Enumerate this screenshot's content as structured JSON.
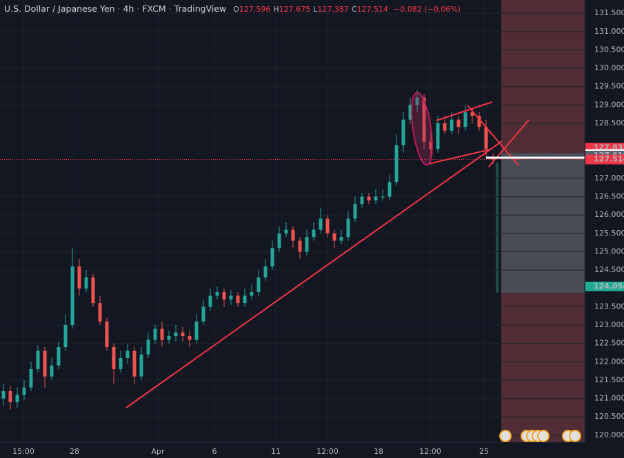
{
  "chart_data": {
    "type": "candlestick",
    "symbol": "U.S. Dollar / Japanese Yen",
    "interval": "4h",
    "exchange": "FXCM",
    "platform": "TradingView",
    "ohlc_header": [
      {
        "key": "O",
        "text": "127.596"
      },
      {
        "key": "H",
        "text": "127.675"
      },
      {
        "key": "L",
        "text": "127.387"
      },
      {
        "key": "C",
        "text": "127.514"
      }
    ],
    "change": "−0.082 (−0.06%)",
    "up_color": "#26a69a",
    "down_color": "#ef5350",
    "open": [
      121.0,
      121.2,
      120.9,
      121.1,
      121.3,
      121.8,
      122.3,
      121.6,
      121.9,
      122.4,
      123.0,
      124.6,
      124.0,
      124.3,
      123.6,
      123.1,
      122.4,
      121.8,
      122.1,
      122.3,
      121.6,
      122.2,
      122.6,
      122.9,
      122.6,
      122.7,
      122.8,
      122.7,
      122.6,
      123.1,
      123.5,
      123.8,
      123.9,
      123.7,
      123.8,
      123.6,
      123.8,
      123.9,
      124.3,
      124.6,
      125.1,
      125.5,
      125.6,
      125.3,
      125.0,
      125.4,
      125.6,
      125.9,
      125.5,
      125.3,
      125.4,
      125.9,
      126.3,
      126.5,
      126.4,
      126.5,
      126.5,
      126.9,
      127.9,
      128.6,
      129.0,
      129.2,
      128.0,
      127.8,
      128.5,
      128.3,
      128.6,
      128.4,
      128.8,
      128.7,
      128.4,
      127.596
    ],
    "high": [
      121.4,
      121.35,
      121.3,
      121.5,
      122.0,
      122.45,
      122.4,
      122.1,
      122.55,
      123.3,
      125.1,
      124.8,
      124.5,
      124.4,
      123.8,
      123.2,
      122.5,
      122.3,
      122.5,
      122.4,
      122.4,
      122.8,
      123.0,
      123.1,
      122.85,
      123.0,
      122.95,
      122.85,
      123.3,
      123.7,
      124.0,
      124.05,
      124.0,
      123.95,
      123.9,
      124.0,
      124.1,
      124.5,
      124.8,
      125.3,
      125.7,
      125.8,
      125.7,
      125.4,
      125.6,
      125.8,
      126.2,
      126.0,
      125.6,
      125.6,
      126.1,
      126.5,
      126.6,
      126.6,
      126.7,
      126.7,
      127.1,
      128.2,
      128.8,
      129.2,
      129.4,
      129.3,
      128.3,
      128.7,
      128.7,
      128.8,
      128.7,
      129.0,
      128.9,
      128.8,
      128.6,
      127.675
    ],
    "low": [
      120.8,
      120.7,
      120.75,
      120.95,
      121.2,
      121.7,
      121.3,
      121.5,
      121.8,
      122.3,
      122.9,
      123.8,
      123.9,
      123.5,
      123.0,
      122.3,
      121.4,
      121.7,
      121.95,
      121.4,
      121.5,
      122.1,
      122.5,
      122.4,
      122.5,
      122.55,
      122.55,
      122.4,
      122.5,
      123.0,
      123.4,
      123.7,
      123.5,
      123.55,
      123.5,
      123.5,
      123.7,
      123.8,
      124.2,
      124.5,
      125.0,
      125.4,
      125.1,
      124.8,
      124.9,
      125.3,
      125.5,
      125.4,
      125.1,
      125.2,
      125.3,
      125.8,
      126.2,
      126.3,
      126.3,
      126.4,
      126.4,
      126.8,
      127.7,
      128.5,
      128.8,
      127.8,
      127.5,
      127.7,
      128.2,
      128.2,
      128.2,
      128.3,
      128.5,
      128.3,
      127.6,
      127.387
    ],
    "close": [
      121.2,
      120.9,
      121.1,
      121.3,
      121.8,
      122.3,
      121.6,
      121.9,
      122.4,
      123.0,
      124.6,
      124.0,
      124.3,
      123.6,
      123.1,
      122.4,
      121.8,
      122.1,
      122.3,
      121.6,
      122.2,
      122.6,
      122.9,
      122.6,
      122.7,
      122.8,
      122.7,
      122.6,
      123.1,
      123.5,
      123.8,
      123.9,
      123.7,
      123.8,
      123.6,
      123.8,
      123.9,
      124.3,
      124.6,
      125.1,
      125.5,
      125.6,
      125.3,
      125.0,
      125.4,
      125.6,
      125.9,
      125.5,
      125.3,
      125.4,
      125.9,
      126.3,
      126.5,
      126.4,
      126.5,
      126.5,
      126.9,
      127.9,
      128.6,
      129.0,
      129.2,
      128.0,
      127.8,
      128.5,
      128.3,
      128.6,
      128.4,
      128.8,
      128.7,
      128.4,
      127.8,
      127.514
    ],
    "xlim": [
      -0.5,
      84.3
    ],
    "xticks": [
      {
        "value": 2.9,
        "label": "15:00"
      },
      {
        "value": 10.3,
        "label": "28"
      },
      {
        "value": 22.4,
        "label": "Apr"
      },
      {
        "value": 30.6,
        "label": "6"
      },
      {
        "value": 39.5,
        "label": "11"
      },
      {
        "value": 47,
        "label": "12:00"
      },
      {
        "value": 54.4,
        "label": "18"
      },
      {
        "value": 61.9,
        "label": "12:00"
      },
      {
        "value": 69.7,
        "label": "25"
      }
    ],
    "ylim": [
      119.81,
      131.86
    ],
    "yticks": [
      {
        "value": 120.0,
        "label": "120.000"
      },
      {
        "value": 120.5,
        "label": "120.500"
      },
      {
        "value": 121.0,
        "label": "121.000"
      },
      {
        "value": 121.5,
        "label": "121.500"
      },
      {
        "value": 122.0,
        "label": "122.000"
      },
      {
        "value": 122.5,
        "label": "122.500"
      },
      {
        "value": 123.0,
        "label": "123.000"
      },
      {
        "value": 123.5,
        "label": "123.500"
      },
      {
        "value": 124.5,
        "label": "124.500"
      },
      {
        "value": 125.0,
        "label": "125.000"
      },
      {
        "value": 125.5,
        "label": "125.500"
      },
      {
        "value": 126.0,
        "label": "126.000"
      },
      {
        "value": 126.5,
        "label": "126.500"
      },
      {
        "value": 127.0,
        "label": "127.000"
      },
      {
        "value": 128.5,
        "label": "128.500"
      },
      {
        "value": 129.0,
        "label": "129.000"
      },
      {
        "value": 129.5,
        "label": "129.500"
      },
      {
        "value": 130.0,
        "label": "130.000"
      },
      {
        "value": 130.5,
        "label": "130.500"
      },
      {
        "value": 131.0,
        "label": "131.000"
      },
      {
        "value": 131.5,
        "label": "131.500"
      }
    ],
    "price_labels": [
      {
        "value": 127.832,
        "label": "127.832",
        "color": "#f23645",
        "text_color": "#ffffff"
      },
      {
        "value": 127.661,
        "label": "127.661",
        "color": "#ffffff",
        "text_color": "#131722"
      },
      {
        "value": 127.618,
        "label": "127.618",
        "color": "#5d606b",
        "text_color": "#ffffff"
      },
      {
        "value": 127.514,
        "label": "127.514",
        "color": "#f23645",
        "text_color": "#ffffff"
      },
      {
        "value": 124.054,
        "label": "124.054",
        "color": "#22ab94",
        "text_color": "#ffffff"
      }
    ],
    "last_price": 127.514
  }
}
